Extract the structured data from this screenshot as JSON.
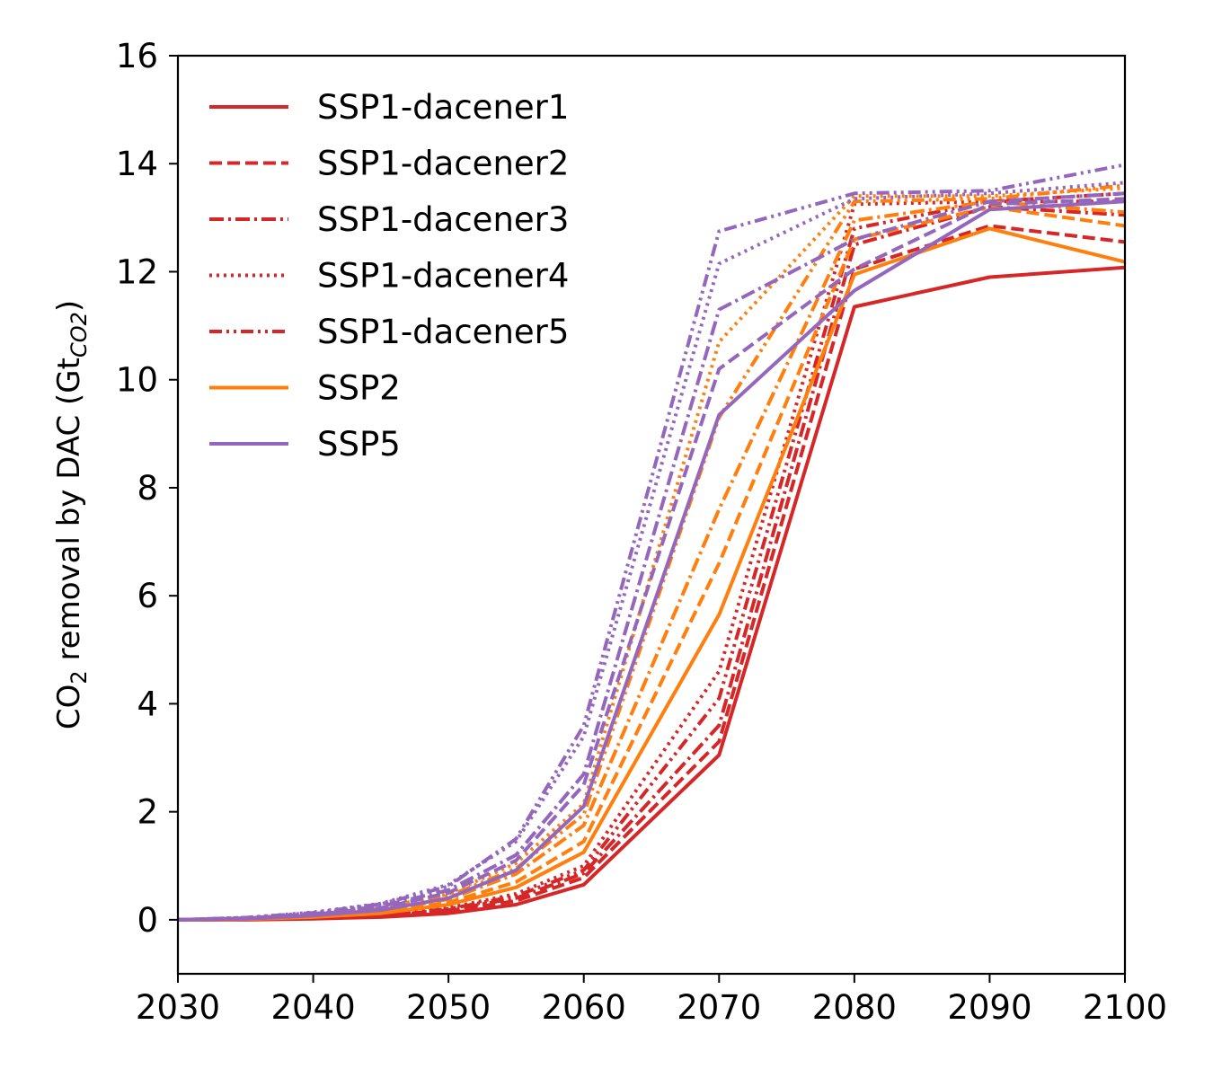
{
  "chart_data": {
    "type": "line",
    "title": "",
    "xlabel": "",
    "ylabel": {
      "prefix": "CO",
      "sub1": "2",
      "middle": " removal by DAC (Gt",
      "sub2": "CO2",
      "suffix": ")"
    },
    "xlim": [
      2030,
      2100
    ],
    "ylim": [
      -1,
      16
    ],
    "xticks": [
      2030,
      2040,
      2050,
      2060,
      2070,
      2080,
      2090,
      2100
    ],
    "yticks": [
      0,
      2,
      4,
      6,
      8,
      10,
      12,
      14,
      16
    ],
    "grid": false,
    "legend_position": "top-left",
    "legend": [
      {
        "name": "SSP1-dacener1",
        "color": "#d62728",
        "dash": "solid"
      },
      {
        "name": "SSP1-dacener2",
        "color": "#d62728",
        "dash": "dashed"
      },
      {
        "name": "SSP1-dacener3",
        "color": "#d62728",
        "dash": "dashdot"
      },
      {
        "name": "SSP1-dacener4",
        "color": "#d62728",
        "dash": "dotted"
      },
      {
        "name": "SSP1-dacener5",
        "color": "#d62728",
        "dash": "dashdotdot"
      },
      {
        "name": "SSP2",
        "color": "#ff7f0e",
        "dash": "solid"
      },
      {
        "name": "SSP5",
        "color": "#9467bd",
        "dash": "solid"
      }
    ],
    "x": [
      2030,
      2035,
      2040,
      2045,
      2050,
      2055,
      2060,
      2070,
      2080,
      2090,
      2100
    ],
    "series": [
      {
        "group": "SSP1-dacener1",
        "color": "#d62728",
        "dash": "solid",
        "values": [
          0,
          0,
          0.02,
          0.05,
          0.12,
          0.28,
          0.65,
          3.05,
          11.35,
          11.9,
          12.08
        ]
      },
      {
        "group": "SSP1-dacener2",
        "color": "#d62728",
        "dash": "dashed",
        "values": [
          0,
          0.01,
          0.03,
          0.07,
          0.16,
          0.35,
          0.78,
          3.3,
          12.05,
          12.85,
          12.55
        ]
      },
      {
        "group": "SSP1-dacener3",
        "color": "#d62728",
        "dash": "dashdot",
        "values": [
          0,
          0.01,
          0.03,
          0.08,
          0.18,
          0.4,
          0.86,
          3.6,
          12.5,
          13.2,
          13.05
        ]
      },
      {
        "group": "SSP1-dacener4",
        "color": "#d62728",
        "dash": "dotted",
        "values": [
          0,
          0.01,
          0.04,
          0.1,
          0.22,
          0.48,
          1.0,
          4.6,
          13.25,
          13.3,
          13.3
        ]
      },
      {
        "group": "SSP1-dacener5",
        "color": "#d62728",
        "dash": "dashdotdot",
        "values": [
          0,
          0.01,
          0.03,
          0.09,
          0.2,
          0.44,
          0.92,
          4.1,
          12.8,
          13.3,
          13.45
        ]
      },
      {
        "group": "SSP2",
        "color": "#ff7f0e",
        "dash": "solid",
        "values": [
          0,
          0.01,
          0.05,
          0.12,
          0.28,
          0.6,
          1.25,
          5.65,
          11.95,
          12.8,
          12.18
        ]
      },
      {
        "group": "SSP2",
        "color": "#ff7f0e",
        "dash": "dashed",
        "values": [
          0,
          0.02,
          0.06,
          0.14,
          0.32,
          0.7,
          1.45,
          6.6,
          12.6,
          13.2,
          12.85
        ]
      },
      {
        "group": "SSP2",
        "color": "#ff7f0e",
        "dash": "dashdot",
        "values": [
          0,
          0.02,
          0.07,
          0.17,
          0.38,
          0.85,
          1.75,
          7.6,
          12.95,
          13.3,
          13.1
        ]
      },
      {
        "group": "SSP2",
        "color": "#ff7f0e",
        "dash": "dotted",
        "values": [
          0,
          0.02,
          0.09,
          0.22,
          0.48,
          1.05,
          2.15,
          10.7,
          13.4,
          13.4,
          13.55
        ]
      },
      {
        "group": "SSP2",
        "color": "#ff7f0e",
        "dash": "dashdotdot",
        "values": [
          0,
          0.02,
          0.08,
          0.2,
          0.44,
          0.95,
          1.95,
          9.3,
          13.3,
          13.35,
          13.6
        ]
      },
      {
        "group": "SSP5",
        "color": "#9467bd",
        "dash": "solid",
        "values": [
          0,
          0.02,
          0.08,
          0.18,
          0.4,
          0.92,
          2.1,
          9.35,
          11.65,
          13.15,
          13.3
        ]
      },
      {
        "group": "SSP5",
        "color": "#9467bd",
        "dash": "dashed",
        "values": [
          0,
          0.03,
          0.1,
          0.22,
          0.5,
          1.1,
          2.5,
          10.2,
          12.05,
          13.25,
          13.35
        ]
      },
      {
        "group": "SSP5",
        "color": "#9467bd",
        "dash": "dashdot",
        "values": [
          0,
          0.03,
          0.11,
          0.25,
          0.55,
          1.2,
          2.7,
          11.3,
          12.6,
          13.3,
          13.45
        ]
      },
      {
        "group": "SSP5",
        "color": "#9467bd",
        "dash": "dotted",
        "values": [
          0,
          0.04,
          0.14,
          0.3,
          0.65,
          1.45,
          3.4,
          12.15,
          13.35,
          13.45,
          13.65
        ]
      },
      {
        "group": "SSP5",
        "color": "#9467bd",
        "dash": "dashdotdot",
        "values": [
          0,
          0.04,
          0.13,
          0.29,
          0.62,
          1.5,
          3.6,
          12.75,
          13.45,
          13.5,
          13.98
        ]
      }
    ]
  }
}
